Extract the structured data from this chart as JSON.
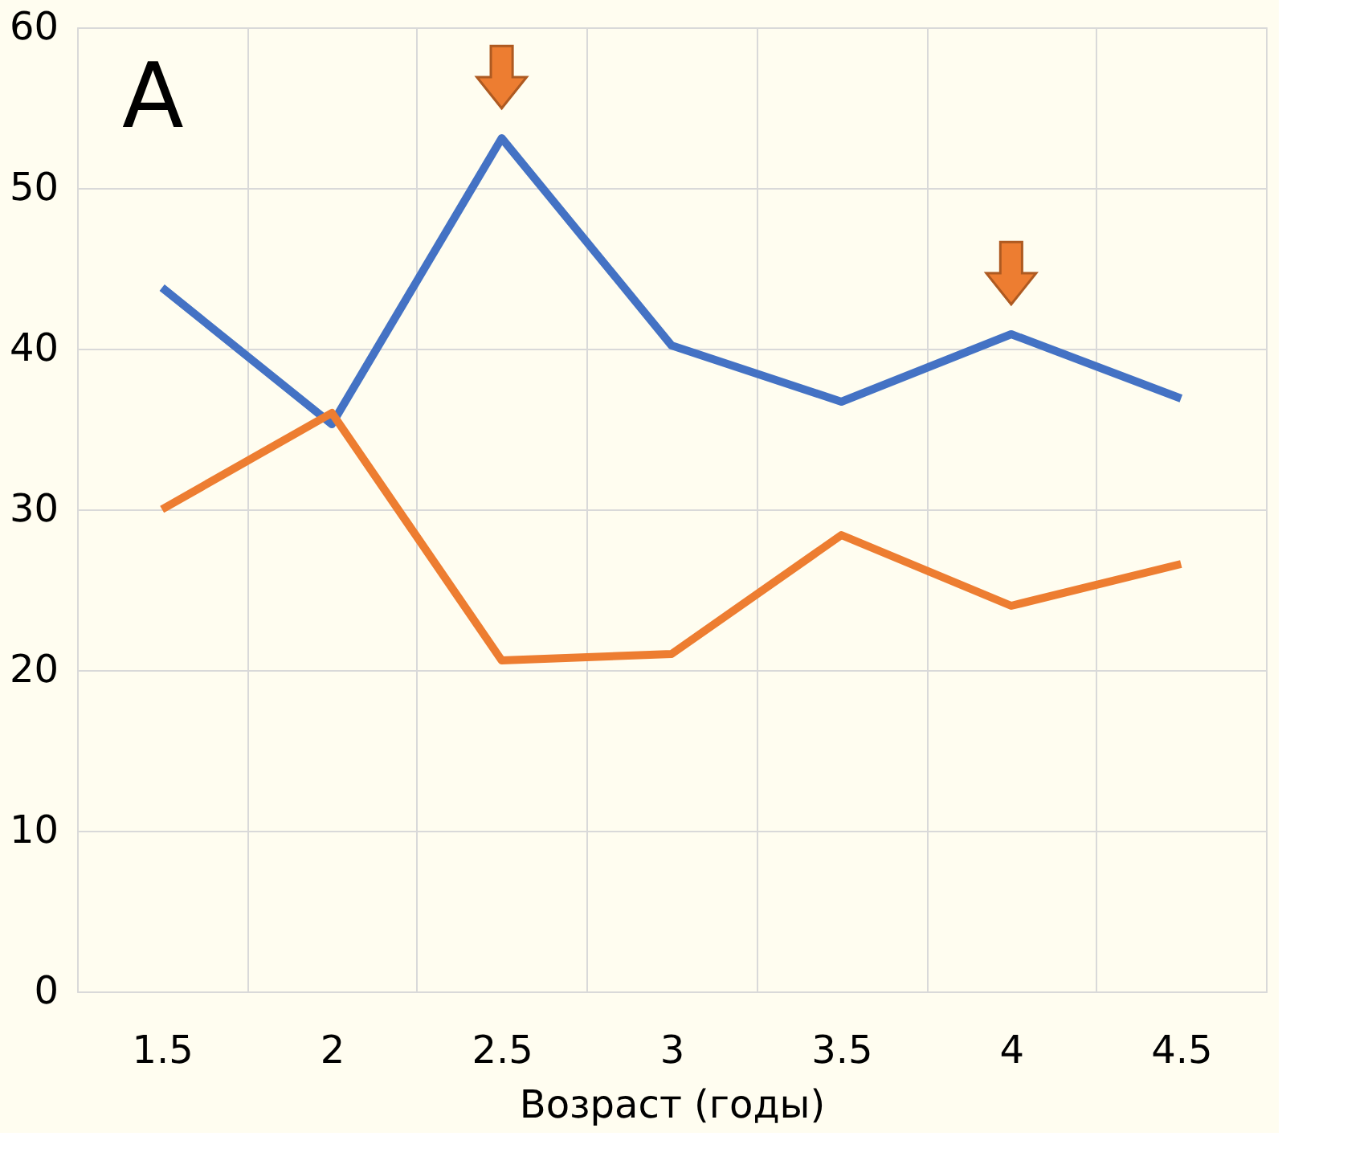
{
  "chart_data": {
    "type": "line",
    "xlabel": "Возраст (годы)",
    "categories": [
      "1.5",
      "2",
      "2.5",
      "3",
      "3.5",
      "4",
      "4.5"
    ],
    "series": [
      {
        "color": "#4472c4",
        "values": [
          43.8,
          35.3,
          53.1,
          40.2,
          36.7,
          40.9,
          36.9
        ]
      },
      {
        "color": "#ed7d31",
        "values": [
          30,
          36,
          20.6,
          21,
          28.4,
          24,
          26.6
        ]
      }
    ],
    "ylim": [
      0,
      60
    ],
    "yticks": [
      0,
      10,
      20,
      30,
      40,
      50,
      60
    ],
    "grid": true,
    "marker": "none",
    "line_style": "solid",
    "annotations": [
      "A"
    ]
  }
}
